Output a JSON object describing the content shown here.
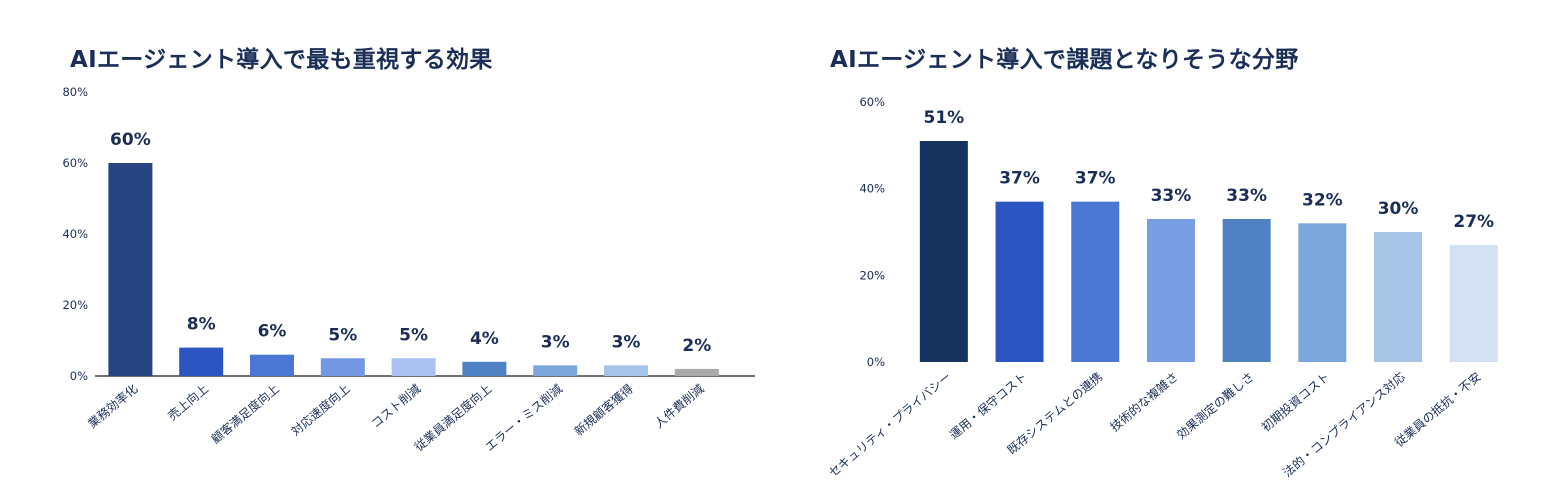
{
  "chart_data": [
    {
      "type": "bar",
      "title": "AIエージェント導入で最も重視する効果",
      "categories": [
        "業務効率化",
        "売上向上",
        "顧客満足度向上",
        "対応速度向上",
        "コスト削減",
        "従業員満足度向上",
        "エラー・ミス削減",
        "新規顧客獲得",
        "人件費削減"
      ],
      "values": [
        60,
        8,
        6,
        5,
        5,
        4,
        3,
        3,
        2
      ],
      "data_labels": [
        "60%",
        "8%",
        "6%",
        "5%",
        "5%",
        "4%",
        "3%",
        "3%",
        "2%"
      ],
      "colors": [
        "#264580",
        "#2c55c4",
        "#4b76d3",
        "#7397e2",
        "#a9c2ef",
        "#4f82c3",
        "#7aa6dc",
        "#a6c3e8",
        "#aaaaaa"
      ],
      "y_ticks": [
        "0%",
        "20%",
        "40%",
        "60%",
        "80%"
      ],
      "ylim": [
        0,
        80
      ],
      "grid": false,
      "xlabel": "",
      "ylabel": ""
    },
    {
      "type": "bar",
      "title": "AIエージェント導入で課題となりそうな分野",
      "categories": [
        "セキュリティ・プライバシー",
        "運用・保守コスト",
        "既存システムとの連携",
        "技術的な複雑さ",
        "効果測定の難しさ",
        "初期投資コスト",
        "法的・コンプライアンス対応",
        "従業員の抵抗・不安"
      ],
      "values": [
        51,
        37,
        37,
        33,
        33,
        32,
        30,
        27
      ],
      "data_labels": [
        "51%",
        "37%",
        "37%",
        "33%",
        "33%",
        "32%",
        "30%",
        "27%"
      ],
      "colors": [
        "#16345e",
        "#2c55c4",
        "#4b76d3",
        "#7a9ee4",
        "#4f82c3",
        "#7aa6dc",
        "#a8c4e7",
        "#d4e1f2"
      ],
      "y_ticks": [
        "0%",
        "20%",
        "40%",
        "60%"
      ],
      "ylim": [
        0,
        60
      ],
      "grid": false,
      "xlabel": "",
      "ylabel": ""
    }
  ]
}
